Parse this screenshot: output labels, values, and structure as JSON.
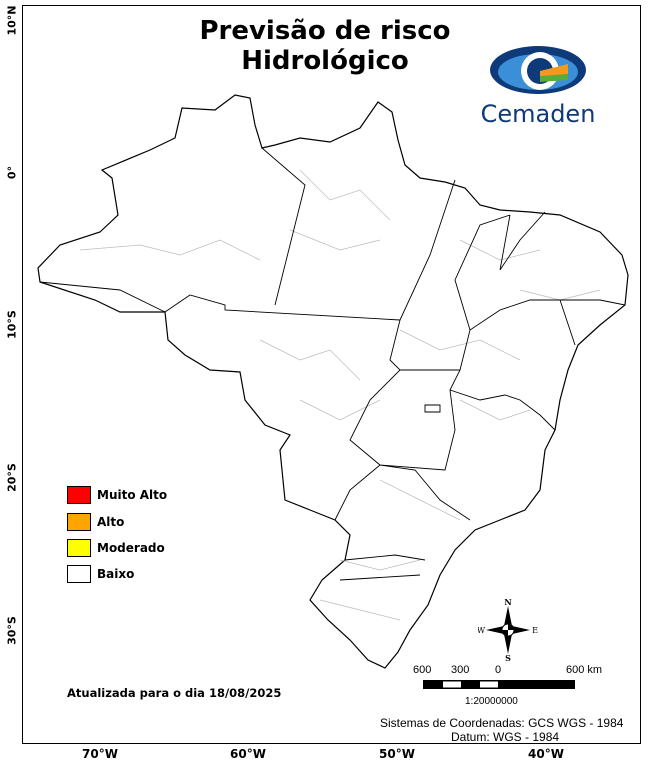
{
  "title": {
    "line1": "Previsão de risco",
    "line2": "Hidrológico"
  },
  "logo": {
    "text": "Cemaden",
    "colors": {
      "dark": "#0e3a7a",
      "light": "#3a8fd8",
      "orange": "#f39a1e",
      "green": "#5aaa3c"
    }
  },
  "latitude_labels": [
    "10°N",
    "0°",
    "10°S",
    "20°S",
    "30°S"
  ],
  "longitude_labels": [
    "70°W",
    "60°W",
    "50°W",
    "40°W"
  ],
  "legend": [
    {
      "label": "Muito Alto",
      "color": "#ff0000"
    },
    {
      "label": "Alto",
      "color": "#ffa500"
    },
    {
      "label": "Moderado",
      "color": "#ffff00"
    },
    {
      "label": "Baixo",
      "color": "#ffffff"
    }
  ],
  "updated": "Atualizada para o dia 18/08/2025",
  "compass": {
    "n": "N",
    "s": "S",
    "e": "E",
    "w": "W"
  },
  "scale": {
    "labels": [
      "600",
      "300",
      "0",
      "600 km"
    ],
    "ratio": "1:20000000"
  },
  "coordinate_system": "Sistemas de Coordenadas: GCS WGS - 1984",
  "datum": "Datum: WGS - 1984"
}
